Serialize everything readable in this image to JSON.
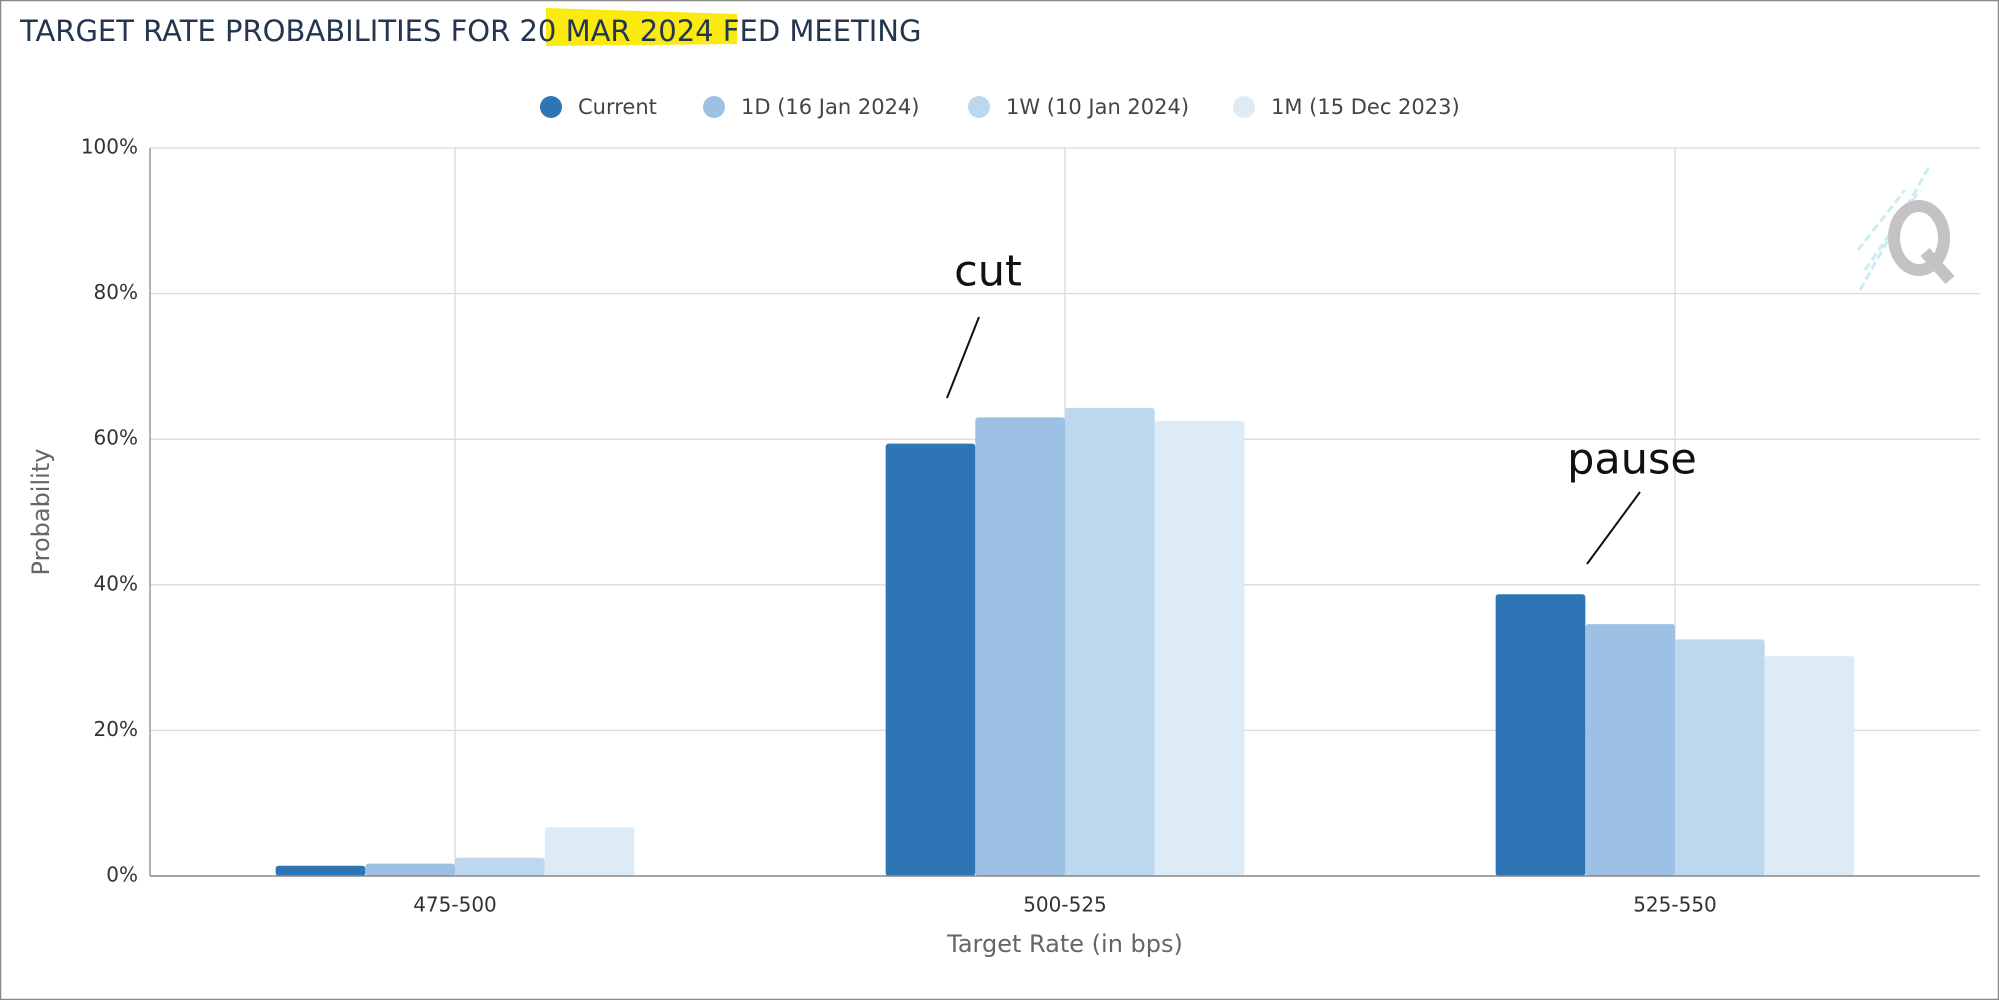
{
  "chart_data": {
    "type": "bar",
    "title": "TARGET RATE PROBABILITIES FOR 20 MAR 2024 FED MEETING",
    "x_label": "Target Rate (in bps)",
    "y_label": "Probability",
    "categories": [
      "475-500",
      "500-525",
      "525-550"
    ],
    "series": [
      {
        "name": "Current",
        "color": "#2e75b6",
        "values": [
          1.4,
          59.4,
          38.7
        ]
      },
      {
        "name": "1D (16 Jan 2024)",
        "color": "#9dc0e5",
        "values": [
          1.7,
          63.0,
          34.6
        ]
      },
      {
        "name": "1W (10 Jan 2024)",
        "color": "#bdd7ee",
        "values": [
          2.5,
          64.3,
          32.5
        ]
      },
      {
        "name": "1M (15 Dec 2023)",
        "color": "#ddebf7",
        "values": [
          6.7,
          62.5,
          30.2
        ]
      }
    ],
    "ylim": [
      0,
      100
    ],
    "yticks": [
      {
        "value": 0,
        "label": "0%"
      },
      {
        "value": 20,
        "label": "20%"
      },
      {
        "value": 40,
        "label": "40%"
      },
      {
        "value": 60,
        "label": "60%"
      },
      {
        "value": 80,
        "label": "80%"
      },
      {
        "value": 100,
        "label": "100%"
      }
    ],
    "grid": true,
    "legend": "top",
    "annotations": [
      "cut",
      "pause"
    ]
  }
}
